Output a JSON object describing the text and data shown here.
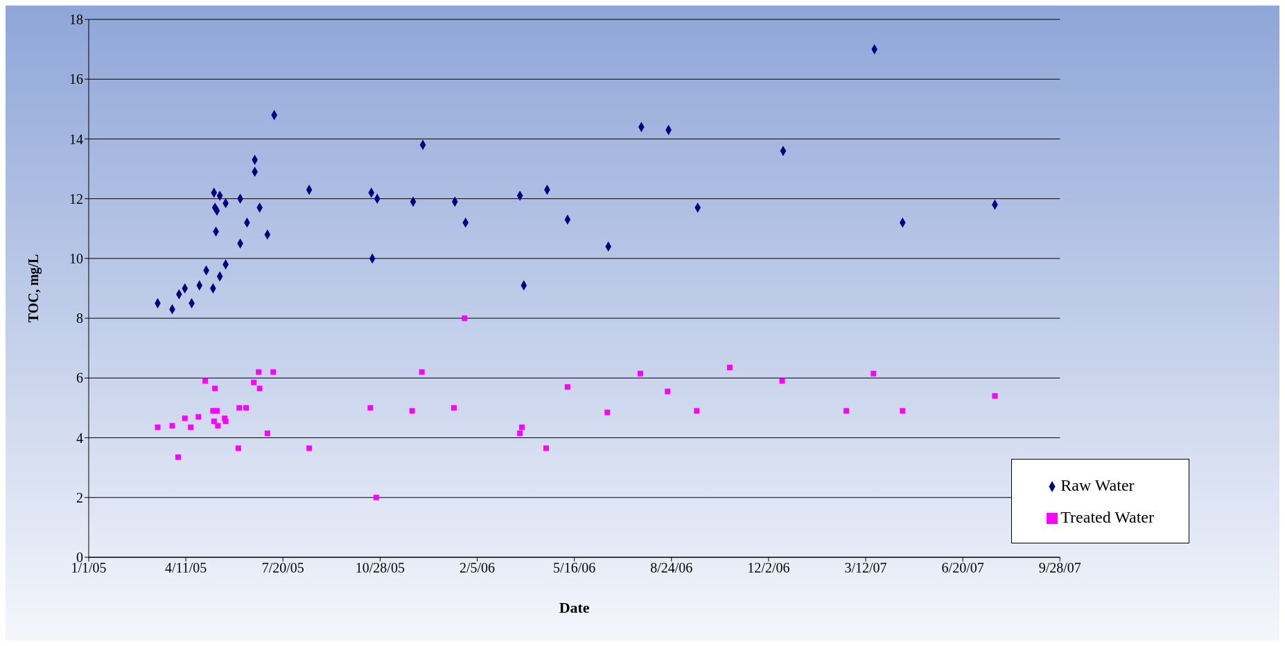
{
  "chart_data": {
    "type": "scatter",
    "xlabel": "Date",
    "ylabel": "TOC, mg/L",
    "xlim": [
      "2005-01-01",
      "2007-09-28"
    ],
    "xticks": [
      {
        "value": "2005-01-01",
        "label": "1/1/05"
      },
      {
        "value": "2005-04-11",
        "label": "4/11/05"
      },
      {
        "value": "2005-07-20",
        "label": "7/20/05"
      },
      {
        "value": "2005-10-28",
        "label": "10/28/05"
      },
      {
        "value": "2006-02-05",
        "label": "2/5/06"
      },
      {
        "value": "2006-05-16",
        "label": "5/16/06"
      },
      {
        "value": "2006-08-24",
        "label": "8/24/06"
      },
      {
        "value": "2006-12-02",
        "label": "12/2/06"
      },
      {
        "value": "2007-03-12",
        "label": "3/12/07"
      },
      {
        "value": "2007-06-20",
        "label": "6/20/07"
      },
      {
        "value": "2007-09-28",
        "label": "9/28/07"
      }
    ],
    "ylim": [
      0,
      18
    ],
    "yticks": [
      0,
      2,
      4,
      6,
      8,
      10,
      12,
      14,
      16,
      18
    ],
    "grid": "y",
    "legend": "bottom right",
    "series": [
      {
        "name": "Raw Water",
        "color": "#000080",
        "marker": "diamond",
        "x": [
          "2005-03-13",
          "2005-03-28",
          "2005-04-04",
          "2005-04-10",
          "2005-04-17",
          "2005-04-25",
          "2005-05-02",
          "2005-05-09",
          "2005-05-10",
          "2005-05-11",
          "2005-05-13",
          "2005-05-12",
          "2005-05-16",
          "2005-05-16",
          "2005-05-22",
          "2005-05-22",
          "2005-06-06",
          "2005-06-06",
          "2005-06-13",
          "2005-06-21",
          "2005-06-21",
          "2005-06-26",
          "2005-07-04",
          "2005-07-11",
          "2005-08-16",
          "2005-10-19",
          "2005-10-20",
          "2005-10-25",
          "2005-12-01",
          "2005-12-11",
          "2006-01-13",
          "2006-01-24",
          "2006-03-21",
          "2006-03-25",
          "2006-04-18",
          "2006-05-09",
          "2006-06-20",
          "2006-07-24",
          "2006-08-21",
          "2006-09-20",
          "2006-12-17",
          "2007-03-21",
          "2007-04-19",
          "2007-07-23"
        ],
        "values": [
          8.5,
          8.3,
          8.8,
          9.0,
          8.5,
          9.1,
          9.6,
          9.0,
          12.2,
          11.7,
          11.6,
          10.9,
          12.1,
          9.4,
          11.85,
          9.8,
          12.0,
          10.5,
          11.2,
          13.3,
          12.9,
          11.7,
          10.8,
          14.8,
          12.3,
          12.2,
          10.0,
          12.0,
          11.9,
          13.8,
          11.9,
          11.2,
          12.1,
          9.1,
          12.3,
          11.3,
          10.4,
          14.4,
          14.3,
          11.7,
          13.6,
          17.0,
          11.2,
          11.8
        ]
      },
      {
        "name": "Treated Water",
        "color": "#ff00ff",
        "marker": "square",
        "x": [
          "2005-03-13",
          "2005-03-28",
          "2005-04-03",
          "2005-04-10",
          "2005-04-16",
          "2005-04-24",
          "2005-05-01",
          "2005-05-09",
          "2005-05-10",
          "2005-05-11",
          "2005-05-13",
          "2005-05-14",
          "2005-05-21",
          "2005-05-22",
          "2005-06-04",
          "2005-06-05",
          "2005-06-12",
          "2005-06-20",
          "2005-06-25",
          "2005-06-26",
          "2005-07-04",
          "2005-07-10",
          "2005-08-16",
          "2005-10-18",
          "2005-10-24",
          "2005-11-30",
          "2005-12-10",
          "2006-01-12",
          "2006-01-23",
          "2006-03-21",
          "2006-03-23",
          "2006-04-17",
          "2006-05-09",
          "2006-06-19",
          "2006-07-23",
          "2006-08-20",
          "2006-09-19",
          "2006-10-23",
          "2006-12-16",
          "2007-02-20",
          "2007-03-20",
          "2007-04-19",
          "2007-07-23"
        ],
        "values": [
          4.35,
          4.4,
          3.35,
          4.65,
          4.35,
          4.7,
          5.9,
          4.9,
          4.55,
          5.65,
          4.9,
          4.4,
          4.65,
          4.55,
          3.65,
          5.0,
          5.0,
          5.85,
          6.2,
          5.65,
          4.15,
          6.2,
          3.65,
          5.0,
          2.0,
          4.9,
          6.2,
          5.0,
          8.0,
          4.15,
          4.35,
          3.65,
          5.7,
          4.85,
          6.15,
          5.55,
          4.9,
          6.35,
          5.9,
          4.9,
          6.15,
          4.9,
          5.4
        ]
      }
    ]
  }
}
